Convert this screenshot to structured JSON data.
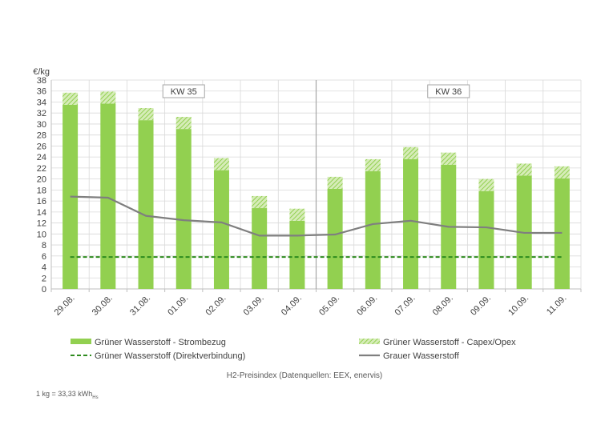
{
  "chart_data": {
    "type": "bar",
    "ylabel": "€/kg",
    "ylim": [
      0,
      38
    ],
    "ytick_step": 2,
    "grid": true,
    "categories": [
      "29.08.",
      "30.08.",
      "31.08.",
      "01.09.",
      "02.09.",
      "03.09.",
      "04.09.",
      "05.09.",
      "06.09.",
      "07.09.",
      "08.09.",
      "09.09.",
      "10.09.",
      "11.09."
    ],
    "series": [
      {
        "name": "Grüner Wasserstoff - Strombezug",
        "kind": "bar",
        "color": "#92d050",
        "values": [
          33.5,
          33.7,
          30.7,
          29.1,
          21.6,
          14.7,
          12.4,
          18.2,
          21.4,
          23.6,
          22.6,
          17.8,
          20.6,
          20.1
        ]
      },
      {
        "name": "Grüner Wasserstoff - Capex/Opex",
        "kind": "stacked-hatch",
        "color": "#92d050",
        "values": [
          2.2,
          2.2,
          2.2,
          2.2,
          2.2,
          2.2,
          2.2,
          2.2,
          2.2,
          2.2,
          2.2,
          2.2,
          2.2,
          2.2
        ]
      },
      {
        "name": "Grüner Wasserstoff (Direktverbindung)",
        "kind": "dashed-line",
        "color": "#2e8b1e",
        "values": [
          5.8,
          5.8,
          5.8,
          5.8,
          5.8,
          5.8,
          5.8,
          5.8,
          5.8,
          5.8,
          5.8,
          5.8,
          5.8,
          5.8
        ]
      },
      {
        "name": "Grauer Wasserstoff",
        "kind": "line",
        "color": "#7f7f7f",
        "values": [
          16.8,
          16.6,
          13.3,
          12.5,
          12.1,
          9.7,
          9.7,
          9.9,
          11.8,
          12.4,
          11.3,
          11.2,
          10.2,
          10.2
        ]
      }
    ],
    "annotations": [
      {
        "label": "KW 35",
        "from_category": 0,
        "to_category": 6
      },
      {
        "label": "KW 36",
        "from_category": 7,
        "to_category": 13
      }
    ],
    "week_separator_after_category": 6,
    "legend_position": "bottom"
  },
  "source_text": "H2-Preisindex (Datenquellen: EEX, enervis)",
  "footnote": {
    "main": "1 kg = 33,33 kWh",
    "sub": "Hs"
  },
  "colors": {
    "grid": "#d9d9d9",
    "axis": "#bfbfbf",
    "separator": "#a6a6a6",
    "text": "#404040"
  }
}
